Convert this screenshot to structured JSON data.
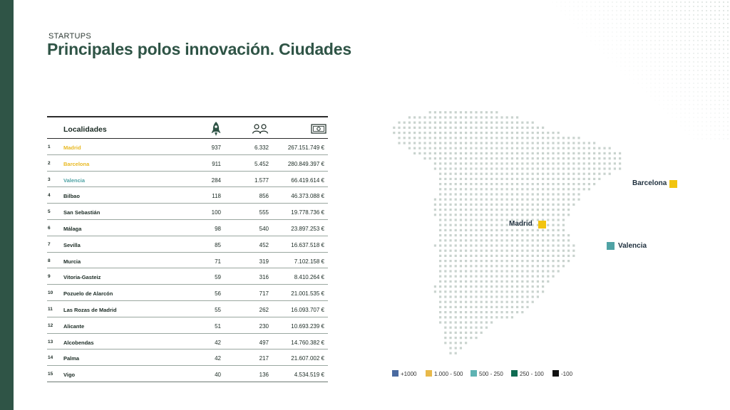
{
  "header": {
    "subtitle": "STARTUPS",
    "title": "Principales polos innovación. Ciudades"
  },
  "table": {
    "column_city": "Localidades",
    "header_icons": [
      "rocket-icon",
      "people-icon",
      "money-icon"
    ],
    "rows": [
      {
        "rank": "1",
        "city": "Madrid",
        "startups": "937",
        "employees": "6.332",
        "investment": "267.151.749 €",
        "color": "#e8b923"
      },
      {
        "rank": "2",
        "city": "Barcelona",
        "startups": "911",
        "employees": "5.452",
        "investment": "280.849.397 €",
        "color": "#e8b923"
      },
      {
        "rank": "3",
        "city": "Valencia",
        "startups": "284",
        "employees": "1.577",
        "investment": "66.419.614 €",
        "color": "#4fa3a5"
      },
      {
        "rank": "4",
        "city": "Bilbao",
        "startups": "118",
        "employees": "856",
        "investment": "46.373.088 €",
        "color": "#1b2b24"
      },
      {
        "rank": "5",
        "city": "San Sebastián",
        "startups": "100",
        "employees": "555",
        "investment": "19.778.736 €",
        "color": "#1b2b24"
      },
      {
        "rank": "6",
        "city": "Málaga",
        "startups": "98",
        "employees": "540",
        "investment": "23.897.253 €",
        "color": "#1b2b24"
      },
      {
        "rank": "7",
        "city": "Sevilla",
        "startups": "85",
        "employees": "452",
        "investment": "16.637.518 €",
        "color": "#1b2b24"
      },
      {
        "rank": "8",
        "city": "Murcia",
        "startups": "71",
        "employees": "319",
        "investment": "7.102.158 €",
        "color": "#1b2b24"
      },
      {
        "rank": "9",
        "city": "Vitoria-Gasteiz",
        "startups": "59",
        "employees": "316",
        "investment": "8.410.264 €",
        "color": "#1b2b24"
      },
      {
        "rank": "10",
        "city": "Pozuelo de Alarcón",
        "startups": "56",
        "employees": "717",
        "investment": "21.001.535 €",
        "color": "#1b2b24"
      },
      {
        "rank": "11",
        "city": "Las Rozas de Madrid",
        "startups": "55",
        "employees": "262",
        "investment": "16.093.707 €",
        "color": "#1b2b24"
      },
      {
        "rank": "12",
        "city": "Alicante",
        "startups": "51",
        "employees": "230",
        "investment": "10.693.239 €",
        "color": "#1b2b24"
      },
      {
        "rank": "13",
        "city": "Alcobendas",
        "startups": "42",
        "employees": "497",
        "investment": "14.760.382 €",
        "color": "#1b2b24"
      },
      {
        "rank": "14",
        "city": "Palma",
        "startups": "42",
        "employees": "217",
        "investment": "21.607.002 €",
        "color": "#1b2b24"
      },
      {
        "rank": "15",
        "city": "Vigo",
        "startups": "40",
        "employees": "136",
        "investment": "4.534.519 €",
        "color": "#1b2b24"
      }
    ]
  },
  "map": {
    "cities": [
      {
        "name": "Barcelona",
        "color": "#f2c40f"
      },
      {
        "name": "Madrid",
        "color": "#f2c40f"
      },
      {
        "name": "Valencia",
        "color": "#4fa3a5"
      }
    ],
    "dot_color": "#c9d3ce"
  },
  "legend": [
    {
      "label": "+1000",
      "color": "#4a6aa0"
    },
    {
      "label": "1.000 - 500",
      "color": "#e8b94a"
    },
    {
      "label": "500 - 250",
      "color": "#5fb3b3"
    },
    {
      "label": "250 - 100",
      "color": "#0f6b52"
    },
    {
      "label": "-100",
      "color": "#111111"
    }
  ]
}
